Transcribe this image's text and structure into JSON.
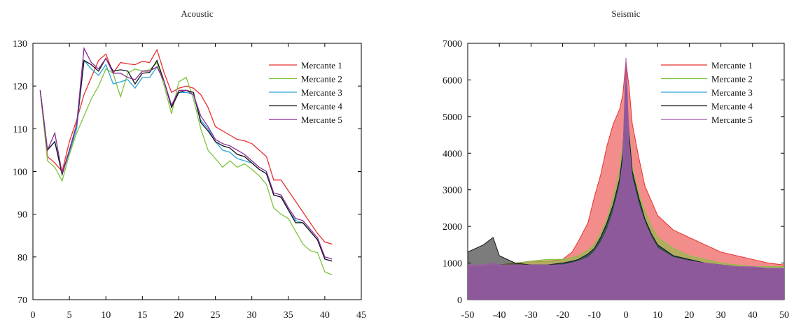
{
  "chart_data": [
    {
      "type": "line",
      "title": "Acoustic",
      "xlabel": "",
      "ylabel": "",
      "xlim": [
        0,
        45
      ],
      "ylim": [
        70,
        130
      ],
      "xticks": [
        "0",
        "5",
        "10",
        "15",
        "20",
        "25",
        "30",
        "35",
        "40",
        "45"
      ],
      "yticks": [
        "70",
        "80",
        "90",
        "100",
        "110",
        "120",
        "130"
      ],
      "legend_position": "top-right",
      "x": [
        1,
        2,
        3,
        4,
        5,
        6,
        7,
        8,
        9,
        10,
        11,
        12,
        13,
        14,
        15,
        16,
        17,
        18,
        19,
        20,
        21,
        22,
        23,
        24,
        25,
        26,
        27,
        28,
        29,
        30,
        31,
        32,
        33,
        34,
        35,
        36,
        37,
        38,
        39,
        40,
        41
      ],
      "series": [
        {
          "name": "Mercante 1",
          "color": "#e8302e",
          "values": [
            119,
            103.5,
            102,
            100,
            107,
            112,
            118,
            122,
            126,
            127.5,
            123,
            125.5,
            125.2,
            125,
            125.8,
            125.5,
            128.5,
            123,
            118.5,
            119.5,
            120,
            119.5,
            118,
            115,
            110.5,
            109.5,
            108.5,
            107.5,
            107.2,
            106.5,
            105,
            103.5,
            98,
            98,
            95.5,
            93,
            90.5,
            88,
            85.5,
            83.5,
            83
          ]
        },
        {
          "name": "Mercante 2",
          "color": "#7ec43d",
          "values": [
            119,
            102.5,
            101,
            97.8,
            104,
            109,
            113,
            117,
            120,
            124,
            123,
            117.5,
            123,
            124,
            123.5,
            123.8,
            125.5,
            120,
            113.5,
            121,
            122,
            117,
            110,
            105,
            103,
            101,
            102.5,
            101,
            101.8,
            100.5,
            99,
            97,
            91.5,
            90,
            89,
            86,
            83,
            81.5,
            81,
            76.5,
            75.8
          ]
        },
        {
          "name": "Mercante 3",
          "color": "#29a3d6",
          "values": [
            119,
            105,
            107,
            99.5,
            104.5,
            110,
            126,
            124,
            122.5,
            125,
            120.5,
            121,
            121.5,
            119.5,
            122,
            122,
            124.5,
            121,
            115.5,
            118.5,
            118.5,
            118,
            112,
            110,
            107,
            105,
            104.5,
            103,
            102.5,
            102,
            100.5,
            99.5,
            94.5,
            94,
            91,
            88.5,
            88,
            86,
            84,
            79.5,
            79
          ]
        },
        {
          "name": "Mercante 4",
          "color": "#111111",
          "values": [
            119,
            105,
            107,
            99.3,
            105,
            111,
            126,
            125,
            123.5,
            126.5,
            123.5,
            123.8,
            123.5,
            120.5,
            123,
            123.2,
            126,
            121,
            115,
            118.5,
            119,
            118.5,
            111.5,
            109.5,
            107,
            106,
            105.5,
            104,
            103.5,
            102,
            100.5,
            99.5,
            94.5,
            94,
            91,
            88,
            88,
            86,
            84,
            79.5,
            79
          ]
        },
        {
          "name": "Mercante 5",
          "color": "#8b2a96",
          "values": [
            119,
            105,
            109,
            99.6,
            105,
            111,
            128.8,
            125.5,
            124,
            126.5,
            123,
            123,
            122,
            121.5,
            123.5,
            123.5,
            124.5,
            121,
            115.5,
            119,
            119,
            118,
            113,
            110.5,
            107.5,
            106.5,
            106,
            105,
            104,
            102.5,
            101,
            100,
            95,
            94.5,
            91.5,
            89,
            88.5,
            86.5,
            84.5,
            80,
            79.5
          ]
        }
      ]
    },
    {
      "type": "area",
      "title": "Seismic",
      "xlabel": "",
      "ylabel": "",
      "xlim": [
        -50,
        50
      ],
      "ylim": [
        0,
        7000
      ],
      "xticks": [
        "-50",
        "-40",
        "-30",
        "-20",
        "-10",
        "0",
        "10",
        "20",
        "30",
        "40",
        "50"
      ],
      "yticks": [
        "0",
        "1000",
        "2000",
        "3000",
        "4000",
        "5000",
        "6000",
        "7000"
      ],
      "legend_position": "top-right",
      "x": [
        -50,
        -45,
        -42,
        -40,
        -35,
        -30,
        -25,
        -20,
        -17,
        -15,
        -12,
        -10,
        -8,
        -6,
        -4,
        -2,
        -1,
        0,
        1,
        2,
        4,
        6,
        8,
        10,
        15,
        20,
        25,
        30,
        35,
        40,
        45,
        50
      ],
      "series": [
        {
          "name": "Mercante 1",
          "color": "#e8302e",
          "values": [
            900,
            900,
            950,
            950,
            1000,
            1050,
            1050,
            1100,
            1300,
            1600,
            2100,
            2800,
            3400,
            4200,
            4800,
            5200,
            5600,
            6500,
            5800,
            4800,
            3900,
            3100,
            2700,
            2300,
            1900,
            1700,
            1500,
            1300,
            1200,
            1100,
            1000,
            950
          ]
        },
        {
          "name": "Mercante 2",
          "color": "#7ec43d",
          "values": [
            900,
            900,
            950,
            950,
            1000,
            1050,
            1100,
            1100,
            1150,
            1200,
            1350,
            1500,
            1800,
            2200,
            2800,
            3500,
            4200,
            5200,
            4600,
            3600,
            2900,
            2400,
            2000,
            1700,
            1400,
            1200,
            1100,
            1000,
            950,
            900,
            900,
            900
          ]
        },
        {
          "name": "Mercante 3",
          "color": "#29a3d6",
          "values": [
            850,
            850,
            900,
            900,
            950,
            950,
            950,
            1000,
            1050,
            1100,
            1250,
            1400,
            1700,
            2100,
            2600,
            3300,
            4000,
            5000,
            4400,
            3400,
            2700,
            2200,
            1800,
            1500,
            1200,
            1100,
            1000,
            950,
            900,
            850,
            850,
            850
          ]
        },
        {
          "name": "Mercante 4",
          "color": "#111111",
          "values": [
            1300,
            1500,
            1700,
            1200,
            1000,
            950,
            950,
            1000,
            1050,
            1100,
            1250,
            1400,
            1700,
            2100,
            2600,
            3300,
            4000,
            5900,
            4500,
            3500,
            2800,
            2200,
            1800,
            1500,
            1200,
            1100,
            1000,
            950,
            900,
            850,
            850,
            850
          ]
        },
        {
          "name": "Mercante 5",
          "color": "#9c5aa8",
          "values": [
            950,
            950,
            1000,
            950,
            950,
            950,
            950,
            950,
            1000,
            1050,
            1150,
            1300,
            1550,
            1900,
            2400,
            3100,
            3800,
            6600,
            4300,
            3300,
            2600,
            2100,
            1700,
            1400,
            1150,
            1050,
            1000,
            950,
            900,
            900,
            850,
            850
          ]
        }
      ]
    }
  ]
}
